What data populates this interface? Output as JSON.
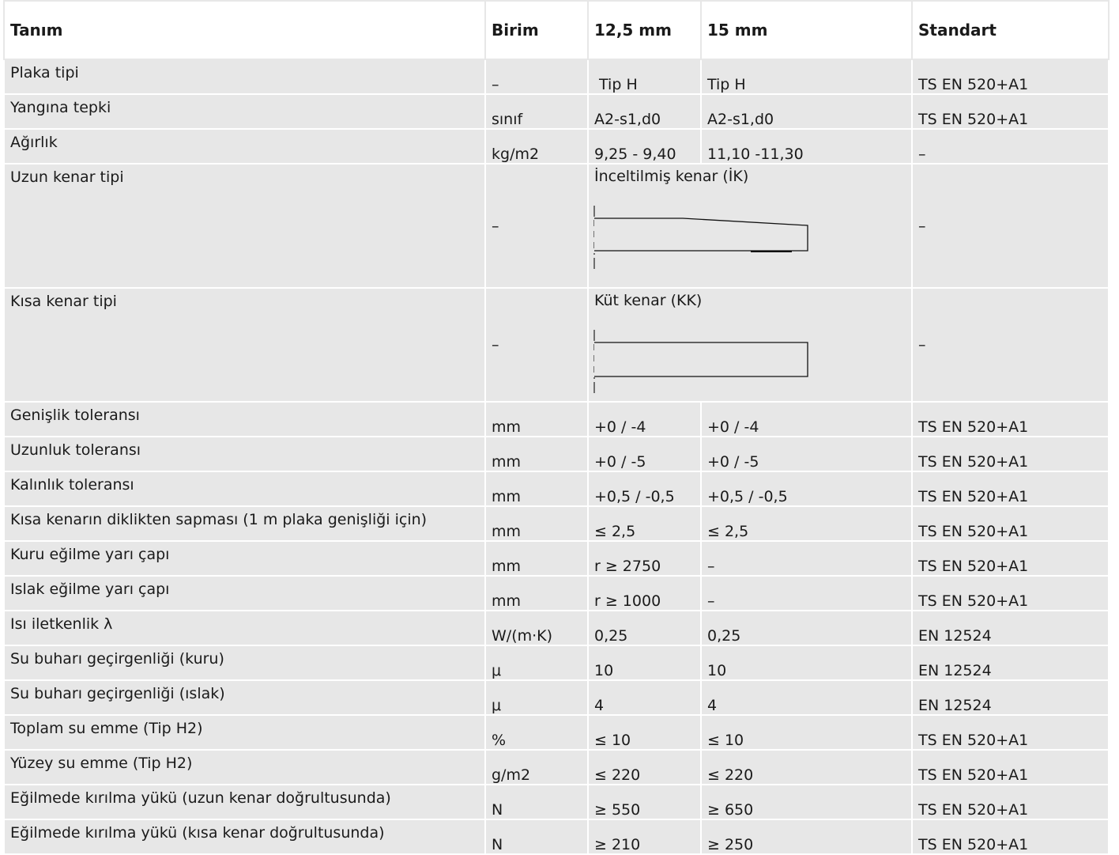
{
  "headers": {
    "definition": "Tanım",
    "unit": "Birim",
    "col_12_5": "12,5 mm",
    "col_15": "15 mm",
    "standard": "Standart"
  },
  "rows": [
    {
      "label": "Plaka tipi",
      "unit": "–",
      "v1": " Tip H",
      "v2": "Tip H",
      "std": "TS EN 520+A1"
    },
    {
      "label": "Yangına tepki",
      "unit": "sınıf",
      "v1": "A2-s1,d0",
      "v2": "A2-s1,d0",
      "std": "TS EN 520+A1"
    },
    {
      "label": "Ağırlık",
      "unit": "kg/m2",
      "v1": "9,25 - 9,40",
      "v2": "11,10 -11,30",
      "std": "–"
    },
    {
      "label": "Uzun kenar tipi",
      "unit": "–",
      "figure_title": "İnceltilmiş kenar (İK)",
      "std": "–"
    },
    {
      "label": "Kısa kenar tipi",
      "unit": "–",
      "figure_title": "Küt kenar (KK)",
      "std": "–"
    },
    {
      "label": "Genişlik toleransı",
      "unit": "mm",
      "v1": "+0 / -4",
      "v2": "+0 / -4",
      "std": "TS EN 520+A1"
    },
    {
      "label": "Uzunluk toleransı",
      "unit": "mm",
      "v1": "+0 / -5",
      "v2": "+0 / -5",
      "std": "TS EN 520+A1"
    },
    {
      "label": "Kalınlık toleransı",
      "unit": "mm",
      "v1": "+0,5 / -0,5",
      "v2": "+0,5 / -0,5",
      "std": "TS EN 520+A1"
    },
    {
      "label": "Kısa kenarın diklikten sapması (1 m plaka genişliği için)",
      "unit": "mm",
      "v1": "≤ 2,5",
      "v2": "≤ 2,5",
      "std": "TS EN 520+A1"
    },
    {
      "label": "Kuru eğilme yarı çapı",
      "unit": "mm",
      "v1": "r ≥ 2750",
      "v2": "–",
      "std": "TS EN 520+A1"
    },
    {
      "label": "Islak eğilme yarı çapı",
      "unit": "mm",
      "v1": "r ≥ 1000",
      "v2": "–",
      "std": "TS EN 520+A1"
    },
    {
      "label": "Isı iletkenlik λ",
      "unit": "W/(m·K)",
      "v1": "0,25",
      "v2": "0,25",
      "std": "EN 12524"
    },
    {
      "label": "Su buharı geçirgenliği (kuru)",
      "unit": "μ",
      "v1": "10",
      "v2": "10",
      "std": "EN 12524"
    },
    {
      "label": "Su buharı geçirgenliği (ıslak)",
      "unit": "μ",
      "v1": "4",
      "v2": "4",
      "std": "EN 12524"
    },
    {
      "label": "Toplam su emme (Tip H2)",
      "unit": "%",
      "v1": "≤ 10",
      "v2": "≤ 10",
      "std": "TS EN 520+A1"
    },
    {
      "label": "Yüzey su emme (Tip H2)",
      "unit": "g/m2",
      "v1": "≤ 220",
      "v2": "≤ 220",
      "std": "TS EN 520+A1"
    },
    {
      "label": "Eğilmede kırılma yükü (uzun kenar doğrultusunda)",
      "unit": "N",
      "v1": "≥ 550",
      "v2": "≥ 650",
      "std": "TS EN 520+A1"
    },
    {
      "label": "Eğilmede kırılma yükü (kısa kenar doğrultusunda)",
      "unit": "N",
      "v1": "≥ 210",
      "v2": "≥ 250",
      "std": "TS EN 520+A1"
    }
  ]
}
